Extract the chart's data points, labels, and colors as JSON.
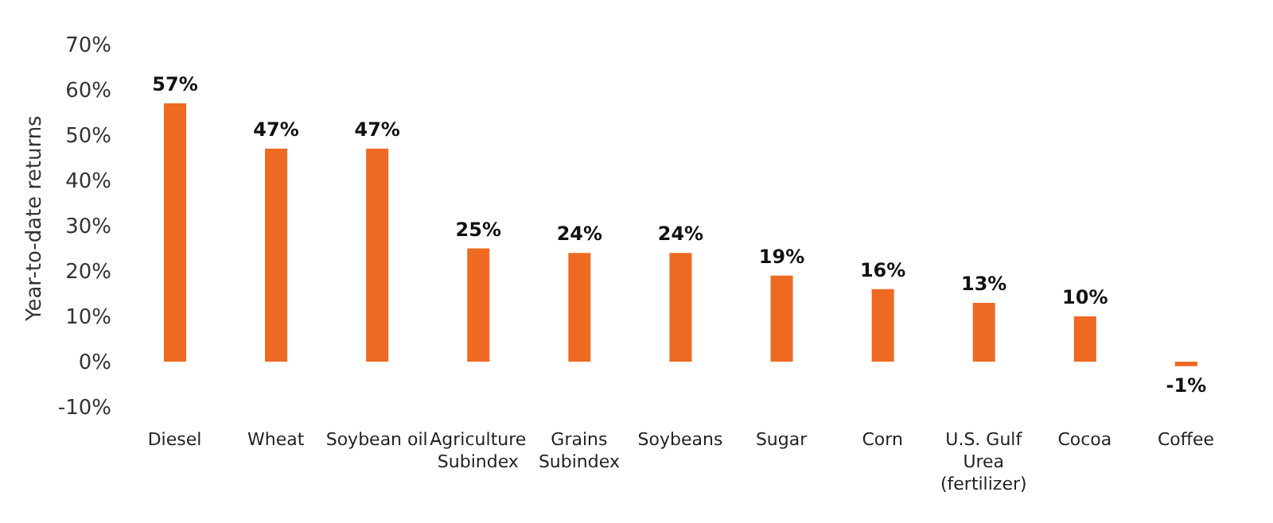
{
  "chart_data": {
    "type": "bar",
    "ylabel": "Year-to-date returns",
    "categories": [
      "Diesel",
      "Wheat",
      "Soybean oil",
      "Agriculture Subindex",
      "Grains Subindex",
      "Soybeans",
      "Sugar",
      "Corn",
      "U.S. Gulf Urea (fertilizer)",
      "Cocoa",
      "Coffee"
    ],
    "values": [
      57,
      47,
      47,
      25,
      24,
      24,
      19,
      16,
      13,
      10,
      -1
    ],
    "color": "#ee6a22",
    "value_labels": [
      "57%",
      "47%",
      "47%",
      "25%",
      "24%",
      "24%",
      "19%",
      "16%",
      "13%",
      "10%",
      "-1%"
    ],
    "ylim": [
      -10,
      70
    ],
    "yticks": [
      {
        "value": -10,
        "label": "-10%"
      },
      {
        "value": 0,
        "label": "0%"
      },
      {
        "value": 10,
        "label": "10%"
      },
      {
        "value": 20,
        "label": "20%"
      },
      {
        "value": 30,
        "label": "30%"
      },
      {
        "value": 40,
        "label": "40%"
      },
      {
        "value": 50,
        "label": "50%"
      },
      {
        "value": 60,
        "label": "60%"
      },
      {
        "value": 70,
        "label": "70%"
      }
    ],
    "grid": false,
    "legend": false
  }
}
